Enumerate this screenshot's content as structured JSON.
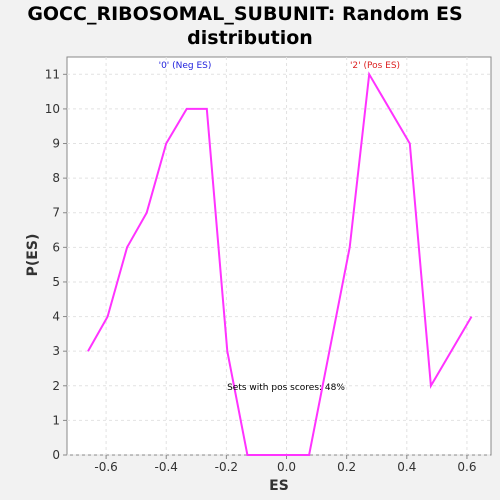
{
  "chart_data": {
    "type": "line",
    "title_line1": "GOCC_RIBOSOMAL_SUBUNIT: Random ES",
    "title_line2": "distribution",
    "xlabel": "ES",
    "ylabel": "P(ES)",
    "xlim": [
      -0.73,
      0.68
    ],
    "ylim": [
      0,
      11.5
    ],
    "x_ticks": [
      -0.6,
      -0.4,
      -0.2,
      0.0,
      0.2,
      0.4,
      0.6
    ],
    "x_tick_labels": [
      "-0.6",
      "-0.4",
      "-0.2",
      "0.0",
      "0.2",
      "0.4",
      "0.6"
    ],
    "y_ticks": [
      0,
      1,
      2,
      3,
      4,
      5,
      6,
      7,
      8,
      9,
      10,
      11
    ],
    "y_tick_labels": [
      "0",
      "1",
      "2",
      "3",
      "4",
      "5",
      "6",
      "7",
      "8",
      "9",
      "10",
      "11"
    ],
    "grid": true,
    "series": [
      {
        "color": "#ff33ff",
        "x": [
          -0.66,
          -0.595,
          -0.53,
          -0.465,
          -0.4,
          -0.332,
          -0.265,
          -0.197,
          -0.13,
          0.075,
          0.21,
          0.275,
          0.41,
          0.48,
          0.615
        ],
        "y": [
          3,
          4,
          6,
          7,
          9,
          10,
          10,
          3,
          0,
          0,
          6,
          11,
          9,
          2,
          4
        ]
      }
    ],
    "annotations": {
      "neg_label": "'0' (Neg ES)",
      "neg_color": "#2222dd",
      "pos_label": "'2' (Pos ES)",
      "pos_color": "#dd2222",
      "sets_text": "Sets with pos scores: 48%"
    }
  }
}
